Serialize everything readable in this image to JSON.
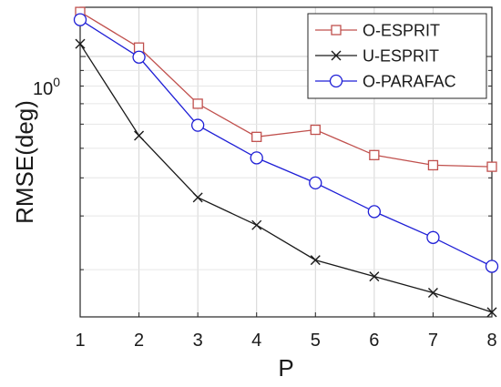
{
  "chart_data": {
    "type": "line",
    "xlabel": "P",
    "ylabel": "RMSE(deg)",
    "yscale": "log",
    "ylim": [
      0.14,
      1.45
    ],
    "xlim": [
      1,
      8
    ],
    "grid": true,
    "legend_position": "top-right",
    "x": [
      1,
      2,
      3,
      4,
      5,
      6,
      7,
      8
    ],
    "x_ticks": [
      "1",
      "2",
      "3",
      "4",
      "5",
      "6",
      "7",
      "8"
    ],
    "y_tick_label": {
      "base": "10",
      "exp": "0"
    },
    "series": [
      {
        "name": "O-ESPRIT",
        "color": "#c0504d",
        "marker": "square",
        "values": [
          1.4,
          1.07,
          0.7,
          0.545,
          0.575,
          0.475,
          0.44,
          0.435
        ]
      },
      {
        "name": "U-ESPRIT",
        "color": "#1a1a1a",
        "marker": "x",
        "values": [
          1.1,
          0.55,
          0.345,
          0.28,
          0.215,
          0.19,
          0.168,
          0.145
        ]
      },
      {
        "name": "O-PARAFAC",
        "color": "#1f1fd6",
        "marker": "circle",
        "values": [
          1.32,
          0.995,
          0.595,
          0.465,
          0.385,
          0.31,
          0.255,
          0.205
        ]
      }
    ]
  }
}
